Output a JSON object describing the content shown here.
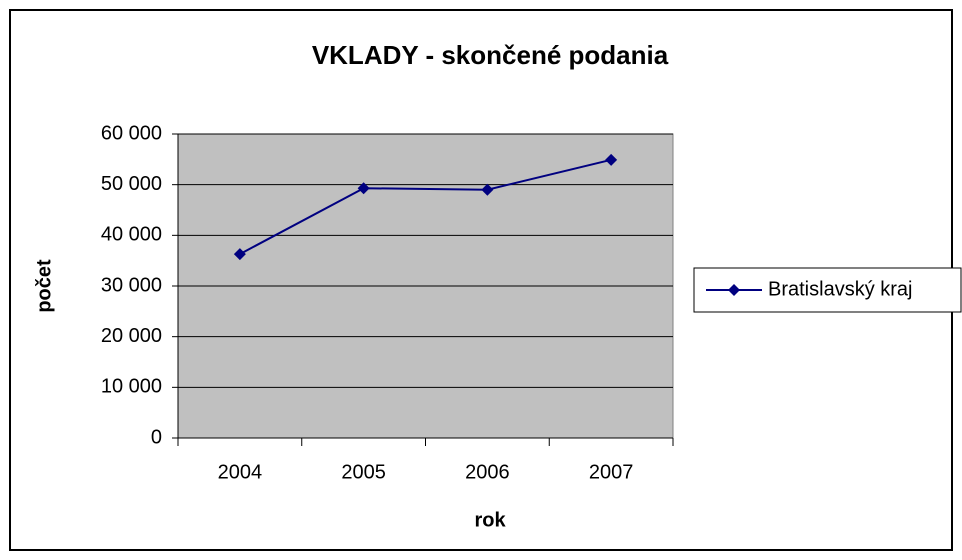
{
  "chart_data": {
    "type": "line",
    "title": "VKLADY - skončené podania",
    "x_label": "rok",
    "y_label": "počet",
    "categories": [
      "2004",
      "2005",
      "2006",
      "2007"
    ],
    "series": [
      {
        "name": "Bratislavský kraj",
        "color": "#000080",
        "values": [
          36300,
          49300,
          49000,
          54900
        ]
      }
    ],
    "ylim": [
      0,
      60000
    ],
    "yticks": [
      0,
      {
        "value": 10000,
        "label": "10 000"
      },
      {
        "value": 20000,
        "label": "20 000"
      },
      {
        "value": 30000,
        "label": "30 000"
      },
      {
        "value": 40000,
        "label": "40 000"
      },
      {
        "value": 50000,
        "label": "50 000"
      },
      {
        "value": 60000,
        "label": "60 000"
      }
    ],
    "grid": true,
    "legend": "right",
    "plot_background": "#c0c0c0"
  }
}
